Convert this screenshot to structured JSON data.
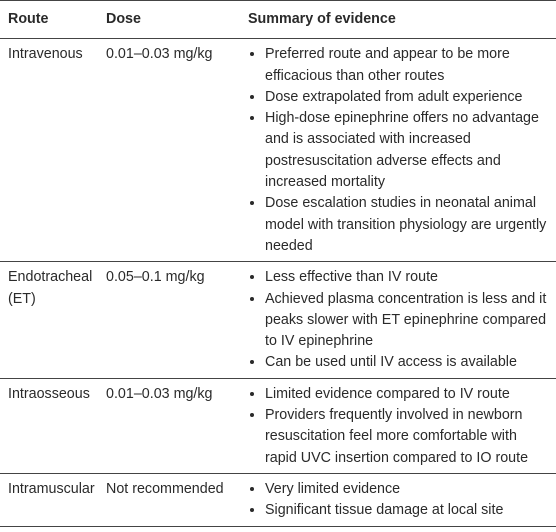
{
  "table": {
    "header": [
      "Route",
      "Dose",
      "Summary of evidence"
    ],
    "rows": [
      {
        "route": "Intravenous",
        "dose": "0.01–0.03 mg/kg",
        "evidence": [
          "Preferred route and appear to be more efficacious than other routes",
          "Dose extrapolated from adult experience",
          "High-dose epinephrine offers no advantage and is associated with increased postresuscitation adverse effects and increased mortality",
          "Dose escalation studies in neonatal animal model with transition physiology are urgently needed"
        ]
      },
      {
        "route": "Endotracheal (ET)",
        "dose": "0.05–0.1 mg/kg",
        "evidence": [
          "Less effective than IV route",
          "Achieved plasma concentration is less and it peaks slower with ET epinephrine compared to IV epinephrine",
          "Can be used until IV access is available"
        ]
      },
      {
        "route": "Intraosseous",
        "dose": "0.01–0.03 mg/kg",
        "evidence": [
          "Limited evidence compared to IV route",
          "Providers frequently involved in newborn resuscitation feel more comfortable with rapid UVC insertion compared to IO route"
        ]
      },
      {
        "route": "Intramuscular",
        "dose": "Not recommended",
        "evidence": [
          "Very limited evidence",
          "Significant tissue damage at local site"
        ]
      }
    ]
  }
}
